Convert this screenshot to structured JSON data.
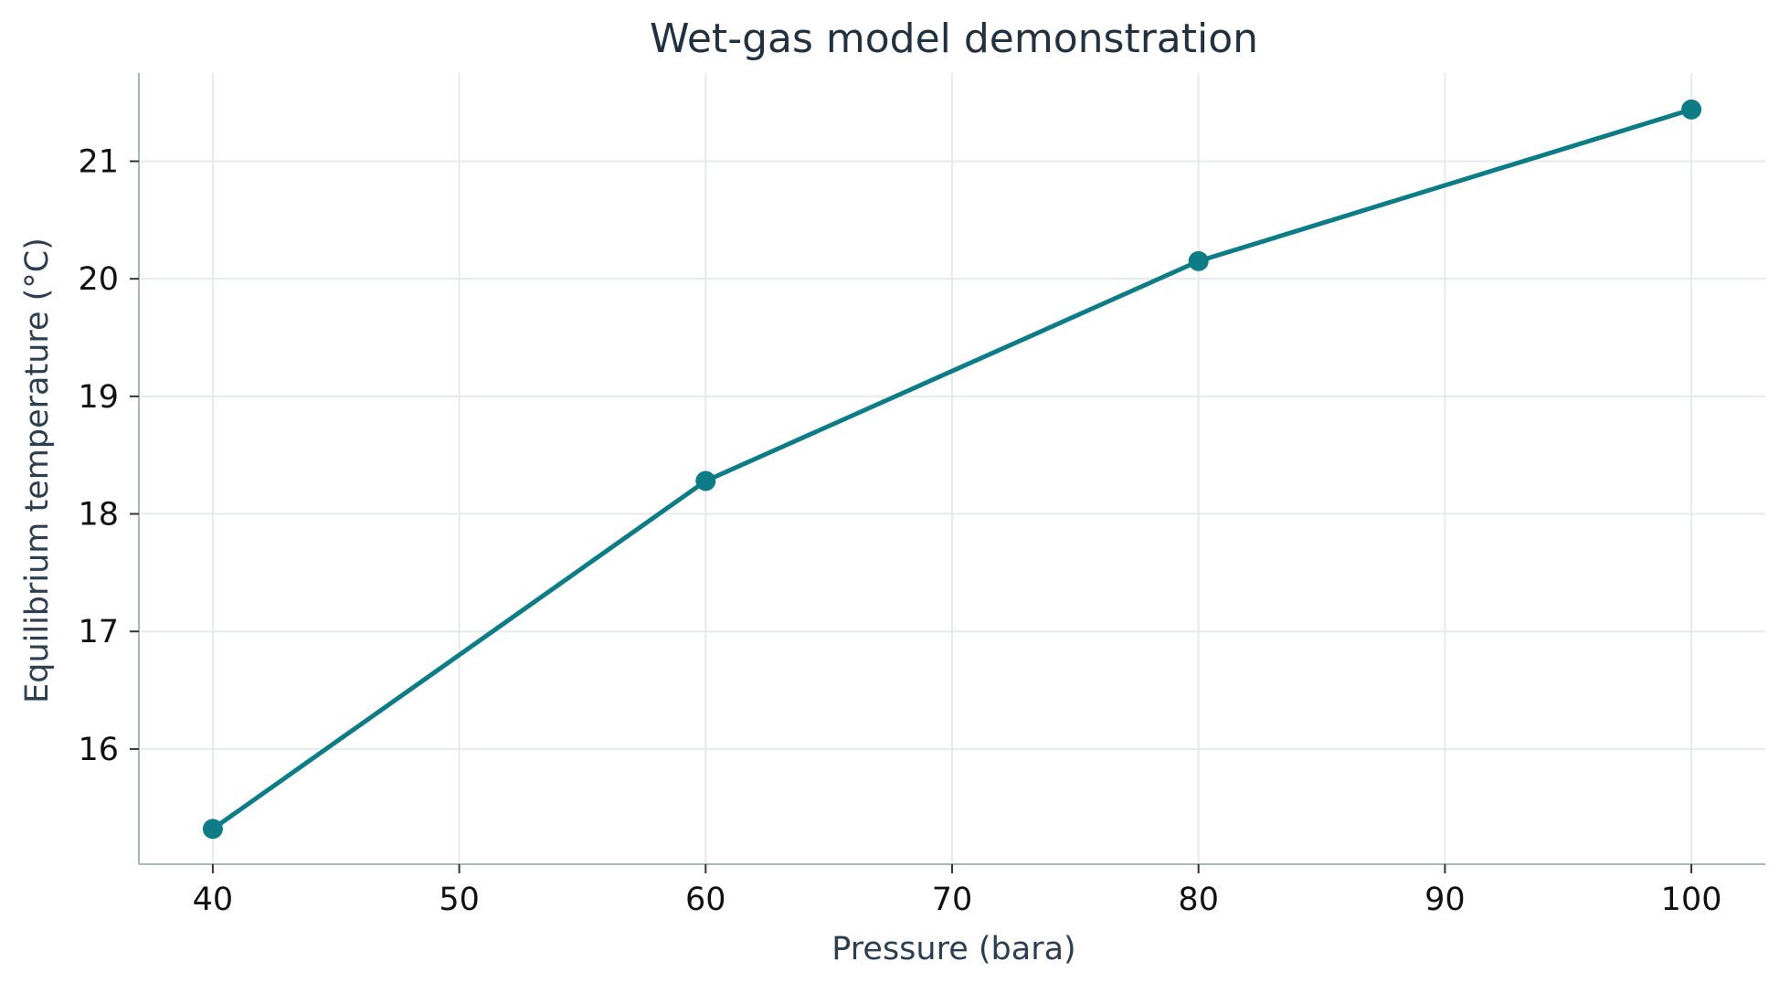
{
  "chart_data": {
    "type": "line",
    "title": "Wet-gas model demonstration",
    "xlabel": "Pressure (bara)",
    "ylabel": "Equilibrium temperature (°C)",
    "x": [
      40,
      60,
      80,
      100
    ],
    "series": [
      {
        "values": [
          15.32,
          18.28,
          20.15,
          21.44
        ]
      }
    ],
    "xlim": [
      37,
      103
    ],
    "ylim": [
      15.02,
      21.75
    ],
    "xticks": [
      40,
      50,
      60,
      70,
      80,
      90,
      100
    ],
    "yticks": [
      16,
      17,
      18,
      19,
      20,
      21
    ],
    "grid": true,
    "legend": "none",
    "colors": {
      "line": "#0e7c86",
      "title": "#22313f",
      "axis_label": "#2c3e50",
      "tick_label": "#111111",
      "spine": "#aab7c0",
      "grid": "#e6eaec"
    }
  }
}
